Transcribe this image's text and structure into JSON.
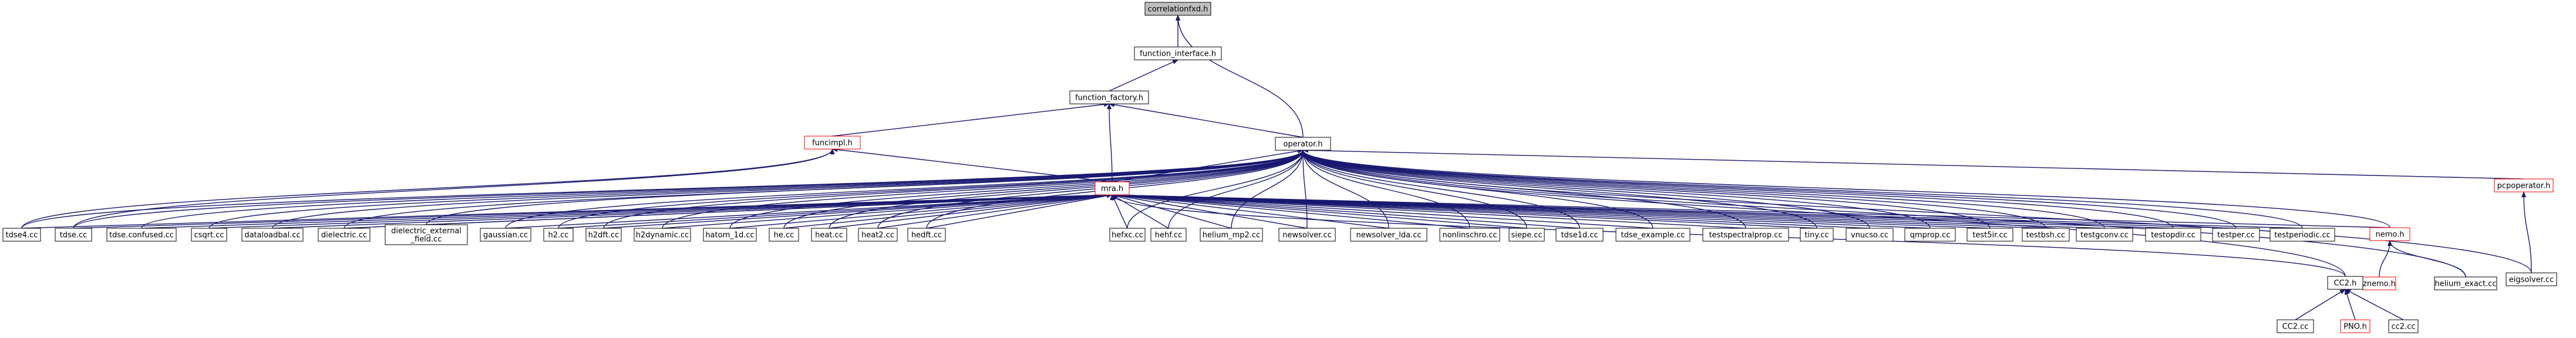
{
  "graph": {
    "colors": {
      "node_border_normal": "#000000",
      "node_border_link": "#ff0000",
      "root_fill": "#bfbfbf",
      "node_fill": "#ffffff",
      "edge": "#191970",
      "text": "#000000"
    },
    "nodes": [
      {
        "id": "root",
        "label": "correlationfxd.h",
        "style": "root"
      },
      {
        "id": "fi",
        "label": "function_interface.h",
        "style": "normal"
      },
      {
        "id": "ff",
        "label": "function_factory.h",
        "style": "normal"
      },
      {
        "id": "funcimpl",
        "label": "funcimpl.h",
        "style": "link"
      },
      {
        "id": "operator",
        "label": "operator.h",
        "style": "normal"
      },
      {
        "id": "mra",
        "label": "mra.h",
        "style": "link"
      },
      {
        "id": "pcpo",
        "label": "pcpoperator.h",
        "style": "link"
      },
      {
        "id": "eig",
        "label": "eigsolver.cc",
        "style": "normal"
      },
      {
        "id": "nemo",
        "label": "nemo.h",
        "style": "link"
      },
      {
        "id": "znemo",
        "label": "znemo.h",
        "style": "link"
      },
      {
        "id": "helex",
        "label": "helium_exact.cc",
        "style": "normal"
      },
      {
        "id": "cc2h",
        "label": "CC2.h",
        "style": "normal"
      },
      {
        "id": "cc2cc",
        "label": "CC2.cc",
        "style": "normal"
      },
      {
        "id": "pno",
        "label": "PNO.h",
        "style": "link"
      },
      {
        "id": "cc2lc",
        "label": "cc2.cc",
        "style": "normal"
      },
      {
        "id": "tdse4",
        "label": "tdse4.cc",
        "style": "normal"
      },
      {
        "id": "tdse",
        "label": "tdse.cc",
        "style": "normal"
      },
      {
        "id": "tdsecf",
        "label": "tdse.confused.cc",
        "style": "normal"
      },
      {
        "id": "csqrt",
        "label": "csqrt.cc",
        "style": "normal"
      },
      {
        "id": "dload",
        "label": "dataloadbal.cc",
        "style": "normal"
      },
      {
        "id": "diel",
        "label": "dielectric.cc",
        "style": "normal"
      },
      {
        "id": "dielext",
        "label": "dielectric_external\n_field.cc",
        "style": "normal"
      },
      {
        "id": "gauss",
        "label": "gaussian.cc",
        "style": "normal"
      },
      {
        "id": "h2",
        "label": "h2.cc",
        "style": "normal"
      },
      {
        "id": "h2dft",
        "label": "h2dft.cc",
        "style": "normal"
      },
      {
        "id": "h2dyn",
        "label": "h2dynamic.cc",
        "style": "normal"
      },
      {
        "id": "hatom",
        "label": "hatom_1d.cc",
        "style": "normal"
      },
      {
        "id": "he",
        "label": "he.cc",
        "style": "normal"
      },
      {
        "id": "heat",
        "label": "heat.cc",
        "style": "normal"
      },
      {
        "id": "heat2",
        "label": "heat2.cc",
        "style": "normal"
      },
      {
        "id": "hedft",
        "label": "hedft.cc",
        "style": "normal"
      },
      {
        "id": "hehf",
        "label": "hehf.cc",
        "style": "normal"
      },
      {
        "id": "hefxc",
        "label": "hefxc.cc",
        "style": "normal"
      },
      {
        "id": "helmp2",
        "label": "helium_mp2.cc",
        "style": "normal"
      },
      {
        "id": "newsolver",
        "label": "newsolver.cc",
        "style": "normal"
      },
      {
        "id": "newlda",
        "label": "newsolver_lda.cc",
        "style": "normal"
      },
      {
        "id": "nonlin",
        "label": "nonlinschro.cc",
        "style": "normal"
      },
      {
        "id": "siepe",
        "label": "siepe.cc",
        "style": "normal"
      },
      {
        "id": "tdse1d",
        "label": "tdse1d.cc",
        "style": "normal"
      },
      {
        "id": "tdseex",
        "label": "tdse_example.cc",
        "style": "normal"
      },
      {
        "id": "tspect",
        "label": "testspectralprop.cc",
        "style": "normal"
      },
      {
        "id": "tiny",
        "label": "tiny.cc",
        "style": "normal"
      },
      {
        "id": "vnucso",
        "label": "vnucso.cc",
        "style": "normal"
      },
      {
        "id": "qmprop",
        "label": "qmprop.cc",
        "style": "normal"
      },
      {
        "id": "testsir",
        "label": "test5ir.cc",
        "style": "normal"
      },
      {
        "id": "testbsh",
        "label": "testbsh.cc",
        "style": "normal"
      },
      {
        "id": "testgconv",
        "label": "testgconv.cc",
        "style": "normal"
      },
      {
        "id": "testopdir",
        "label": "testopdir.cc",
        "style": "normal"
      },
      {
        "id": "testper",
        "label": "testper.cc",
        "style": "normal"
      },
      {
        "id": "testperiodic",
        "label": "testperiodic.cc",
        "style": "normal"
      }
    ],
    "edges": [
      [
        "fi",
        "root"
      ],
      [
        "ff",
        "fi"
      ],
      [
        "funcimpl",
        "ff"
      ],
      [
        "operator",
        "root"
      ],
      [
        "operator",
        "ff"
      ],
      [
        "mra",
        "ff"
      ],
      [
        "mra",
        "funcimpl"
      ],
      [
        "mra",
        "operator"
      ],
      [
        "pcpo",
        "operator"
      ],
      [
        "eig",
        "pcpo"
      ],
      [
        "eig",
        "operator"
      ],
      [
        "nemo",
        "mra"
      ],
      [
        "nemo",
        "operator"
      ],
      [
        "znemo",
        "nemo"
      ],
      [
        "helex",
        "nemo"
      ],
      [
        "helex",
        "operator"
      ],
      [
        "cc2h",
        "mra"
      ],
      [
        "cc2h",
        "operator"
      ],
      [
        "cc2cc",
        "cc2h"
      ],
      [
        "pno",
        "cc2h"
      ],
      [
        "cc2lc",
        "cc2h"
      ],
      [
        "tdse4",
        "mra"
      ],
      [
        "tdse4",
        "operator"
      ],
      [
        "tdse4",
        "funcimpl"
      ],
      [
        "tdse",
        "mra"
      ],
      [
        "tdse",
        "operator"
      ],
      [
        "tdse",
        "funcimpl"
      ],
      [
        "tdsecf",
        "mra"
      ],
      [
        "tdsecf",
        "operator"
      ],
      [
        "csqrt",
        "mra"
      ],
      [
        "csqrt",
        "operator"
      ],
      [
        "dload",
        "mra"
      ],
      [
        "dload",
        "operator"
      ],
      [
        "diel",
        "mra"
      ],
      [
        "diel",
        "operator"
      ],
      [
        "dielext",
        "mra"
      ],
      [
        "dielext",
        "operator"
      ],
      [
        "gauss",
        "mra"
      ],
      [
        "gauss",
        "operator"
      ],
      [
        "h2",
        "mra"
      ],
      [
        "h2",
        "operator"
      ],
      [
        "h2dft",
        "mra"
      ],
      [
        "h2dft",
        "operator"
      ],
      [
        "h2dyn",
        "mra"
      ],
      [
        "h2dyn",
        "operator"
      ],
      [
        "hatom",
        "mra"
      ],
      [
        "hatom",
        "operator"
      ],
      [
        "he",
        "mra"
      ],
      [
        "he",
        "operator"
      ],
      [
        "heat",
        "mra"
      ],
      [
        "heat",
        "operator"
      ],
      [
        "heat2",
        "mra"
      ],
      [
        "heat2",
        "operator"
      ],
      [
        "hedft",
        "mra"
      ],
      [
        "hedft",
        "operator"
      ],
      [
        "hehf",
        "mra"
      ],
      [
        "hehf",
        "operator"
      ],
      [
        "hefxc",
        "mra"
      ],
      [
        "hefxc",
        "operator"
      ],
      [
        "helmp2",
        "mra"
      ],
      [
        "helmp2",
        "operator"
      ],
      [
        "newsolver",
        "mra"
      ],
      [
        "newsolver",
        "operator"
      ],
      [
        "newlda",
        "mra"
      ],
      [
        "newlda",
        "operator"
      ],
      [
        "nonlin",
        "mra"
      ],
      [
        "nonlin",
        "operator"
      ],
      [
        "siepe",
        "mra"
      ],
      [
        "siepe",
        "operator"
      ],
      [
        "tdse1d",
        "mra"
      ],
      [
        "tdse1d",
        "operator"
      ],
      [
        "tdseex",
        "mra"
      ],
      [
        "tdseex",
        "operator"
      ],
      [
        "tspect",
        "mra"
      ],
      [
        "tspect",
        "operator"
      ],
      [
        "tiny",
        "mra"
      ],
      [
        "tiny",
        "operator"
      ],
      [
        "vnucso",
        "mra"
      ],
      [
        "vnucso",
        "operator"
      ],
      [
        "qmprop",
        "mra"
      ],
      [
        "qmprop",
        "operator"
      ],
      [
        "testsir",
        "mra"
      ],
      [
        "testsir",
        "operator"
      ],
      [
        "testbsh",
        "mra"
      ],
      [
        "testbsh",
        "operator"
      ],
      [
        "testgconv",
        "mra"
      ],
      [
        "testgconv",
        "operator"
      ],
      [
        "testopdir",
        "mra"
      ],
      [
        "testopdir",
        "operator"
      ],
      [
        "testper",
        "mra"
      ],
      [
        "testper",
        "operator"
      ],
      [
        "testperiodic",
        "mra"
      ],
      [
        "testperiodic",
        "operator"
      ]
    ]
  }
}
